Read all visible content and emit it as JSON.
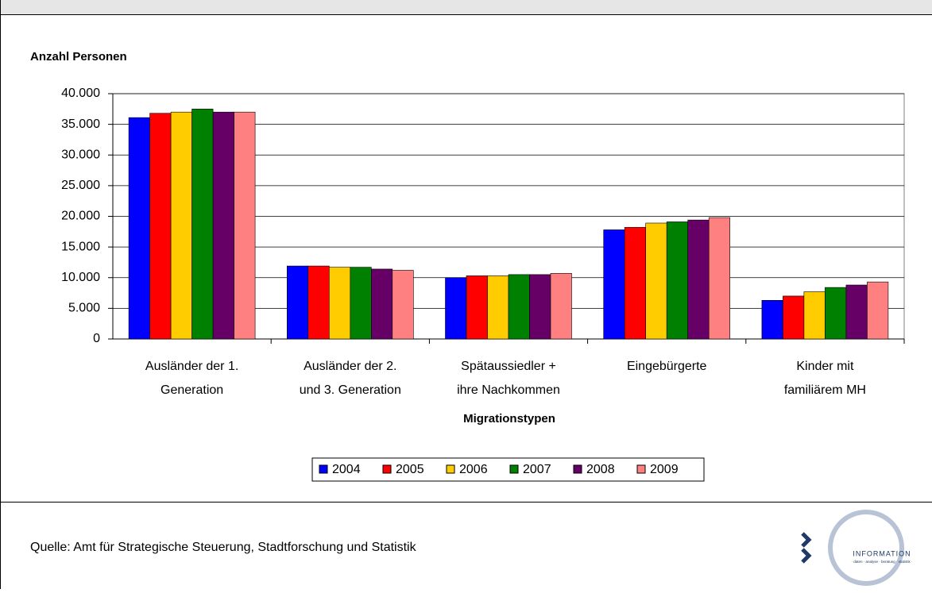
{
  "chart_data": {
    "type": "bar",
    "y_label": "Anzahl Personen",
    "x_label": "Migrationstypen",
    "categories": [
      [
        "Ausländer der 1.",
        "Generation"
      ],
      [
        "Ausländer der 2.",
        "und 3. Generation"
      ],
      [
        "Spätaussiedler +",
        "ihre Nachkommen"
      ],
      [
        "Eingebürgerte"
      ],
      [
        "Kinder mit",
        "familiärem MH"
      ]
    ],
    "series": [
      {
        "name": "2004",
        "color": "#0000ff",
        "values": [
          36100,
          11900,
          10000,
          17800,
          6300
        ]
      },
      {
        "name": "2005",
        "color": "#ff0000",
        "values": [
          36800,
          11900,
          10300,
          18200,
          7000
        ]
      },
      {
        "name": "2006",
        "color": "#ffcc00",
        "values": [
          37000,
          11700,
          10300,
          18900,
          7700
        ]
      },
      {
        "name": "2007",
        "color": "#008000",
        "values": [
          37500,
          11700,
          10500,
          19100,
          8400
        ]
      },
      {
        "name": "2008",
        "color": "#660066",
        "values": [
          37000,
          11400,
          10500,
          19400,
          8800
        ]
      },
      {
        "name": "2009",
        "color": "#ff8080",
        "values": [
          37000,
          11200,
          10700,
          19800,
          9300
        ]
      }
    ],
    "ylim": [
      0,
      40000
    ],
    "yticks": [
      0,
      {
        "value": 5000,
        "label": "5.000"
      },
      {
        "value": 10000,
        "label": "10.000"
      },
      {
        "value": 15000,
        "label": "15.000"
      },
      {
        "value": 20000,
        "label": "20.000"
      },
      {
        "value": 25000,
        "label": "25.000"
      },
      {
        "value": 30000,
        "label": "30.000"
      },
      {
        "value": 35000,
        "label": "35.000"
      },
      {
        "value": 40000,
        "label": "40.000"
      }
    ],
    "grid": true,
    "legend": "bottom"
  },
  "footer": {
    "source": "Quelle:  Amt für Strategische Steuerung, Stadtforschung und Statistik",
    "logo": {
      "title": "INFORMATION",
      "subtitle": "· daten · analyse · beratung · statistik ·"
    }
  }
}
